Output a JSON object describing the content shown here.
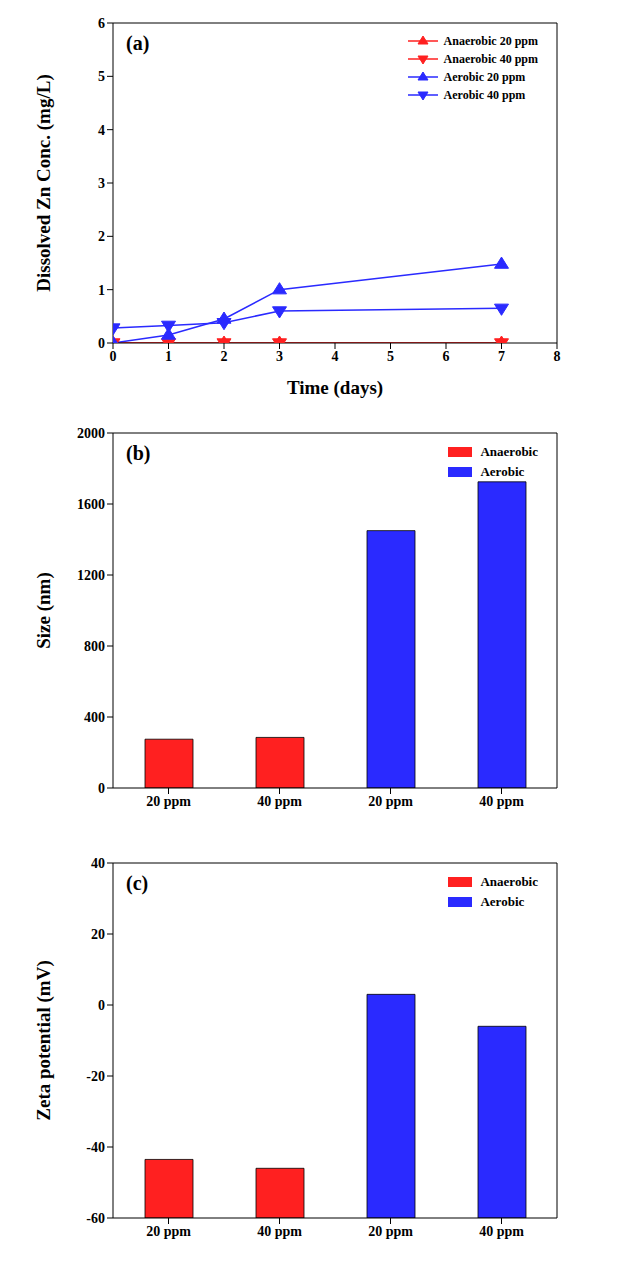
{
  "chart_data": [
    {
      "type": "line",
      "title": "(a)",
      "xlabel": "Time (days)",
      "ylabel": "Dissolved Zn Conc. (mg/L)",
      "x": [
        0,
        1,
        2,
        3,
        7
      ],
      "xlim": [
        0,
        8
      ],
      "xticks": [
        0,
        1,
        2,
        3,
        4,
        5,
        6,
        7,
        8
      ],
      "ylim": [
        0,
        6
      ],
      "yticks": [
        0,
        1,
        2,
        3,
        4,
        5,
        6
      ],
      "legend": "upper right",
      "series": [
        {
          "name": "Anaerobic 20 ppm",
          "color": "#ff2020",
          "marker": "triangle-up",
          "values": [
            0,
            0,
            0,
            0,
            0
          ]
        },
        {
          "name": "Anaerobic 40 ppm",
          "color": "#ff2020",
          "marker": "triangle-down",
          "values": [
            0,
            0,
            0,
            0,
            0
          ]
        },
        {
          "name": "Aerobic 20 ppm",
          "color": "#2a2aff",
          "marker": "triangle-up",
          "values": [
            0,
            0.15,
            0.45,
            1.0,
            1.48
          ]
        },
        {
          "name": "Aerobic 40 ppm",
          "color": "#2a2aff",
          "marker": "triangle-down",
          "values": [
            0.28,
            0.33,
            0.38,
            0.6,
            0.65
          ]
        }
      ]
    },
    {
      "type": "bar",
      "title": "(b)",
      "ylabel": "Size (nm)",
      "categories": [
        "20 ppm",
        "40 ppm",
        "20 ppm",
        "40 ppm"
      ],
      "ylim": [
        0,
        2000
      ],
      "yticks": [
        0,
        400,
        800,
        1200,
        1600,
        2000
      ],
      "legend": "upper right",
      "series": [
        {
          "name": "Anaerobic",
          "color": "#ff2020",
          "values": [
            275,
            285,
            null,
            null
          ]
        },
        {
          "name": "Aerobic",
          "color": "#2a2aff",
          "values": [
            null,
            null,
            1450,
            1725
          ]
        }
      ]
    },
    {
      "type": "bar",
      "title": "(c)",
      "ylabel": "Zeta potential (mV)",
      "categories": [
        "20 ppm",
        "40 ppm",
        "20 ppm",
        "40 ppm"
      ],
      "ylim": [
        -60,
        40
      ],
      "yticks": [
        -60,
        -40,
        -20,
        0,
        20,
        40
      ],
      "legend": "upper right",
      "series": [
        {
          "name": "Anaerobic",
          "color": "#ff2020",
          "values": [
            -43.5,
            -46,
            null,
            null
          ]
        },
        {
          "name": "Aerobic",
          "color": "#2a2aff",
          "values": [
            null,
            null,
            3,
            -6
          ]
        }
      ]
    }
  ]
}
